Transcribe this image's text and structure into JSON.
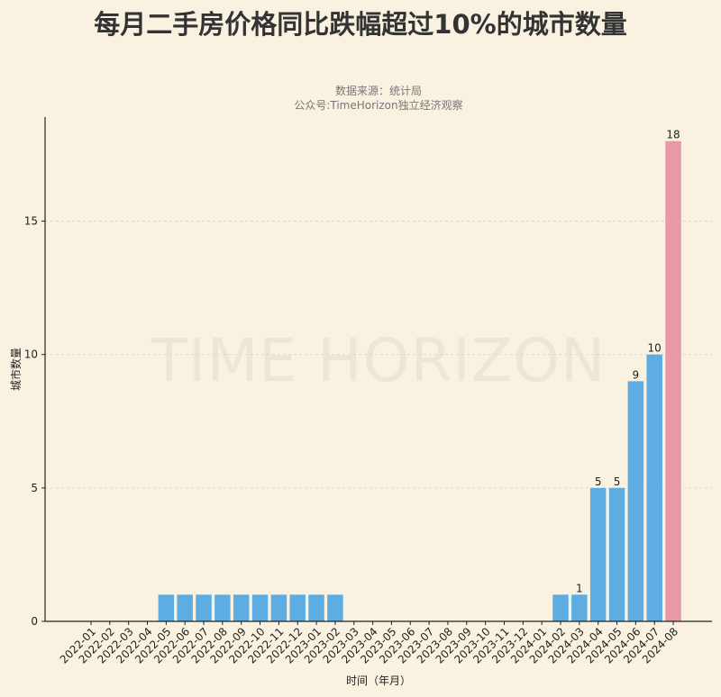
{
  "title": "每月二手房价格同比跌幅超过10%的城市数量",
  "subtitle_lines": [
    "数据来源：统计局",
    "公众号:TimeHorizon独立经济观察"
  ],
  "watermark": "TIME HORIZON",
  "chart_data": {
    "type": "bar",
    "title": "每月二手房价格同比跌幅超过10%的城市数量",
    "xlabel": "时间（年月）",
    "ylabel": "城市数量",
    "categories": [
      "2022-01",
      "2022-02",
      "2022-03",
      "2022-04",
      "2022-05",
      "2022-06",
      "2022-07",
      "2022-08",
      "2022-09",
      "2022-10",
      "2022-11",
      "2022-12",
      "2023-01",
      "2023-02",
      "2023-03",
      "2023-04",
      "2023-05",
      "2023-06",
      "2023-07",
      "2023-08",
      "2023-09",
      "2023-10",
      "2023-11",
      "2023-12",
      "2024-01",
      "2024-02",
      "2024-03",
      "2024-04",
      "2024-05",
      "2024-06",
      "2024-07",
      "2024-08"
    ],
    "values": [
      0,
      0,
      0,
      0,
      1,
      1,
      1,
      1,
      1,
      1,
      1,
      1,
      1,
      1,
      0,
      0,
      0,
      0,
      0,
      0,
      0,
      0,
      0,
      0,
      0,
      1,
      1,
      5,
      5,
      9,
      10,
      18
    ],
    "data_labels": [
      null,
      null,
      null,
      null,
      null,
      null,
      null,
      null,
      null,
      null,
      null,
      null,
      null,
      null,
      null,
      null,
      null,
      null,
      null,
      null,
      null,
      null,
      null,
      null,
      null,
      null,
      "1",
      "5",
      "5",
      "9",
      "10",
      "18"
    ],
    "yticks": [
      0,
      5,
      10,
      15
    ],
    "ylim": [
      0,
      18.9
    ],
    "grid": "horizontal dashed",
    "colors": {
      "default": "#5dade2",
      "highlight": "#e899a9",
      "highlight_category": "2024-08"
    }
  }
}
